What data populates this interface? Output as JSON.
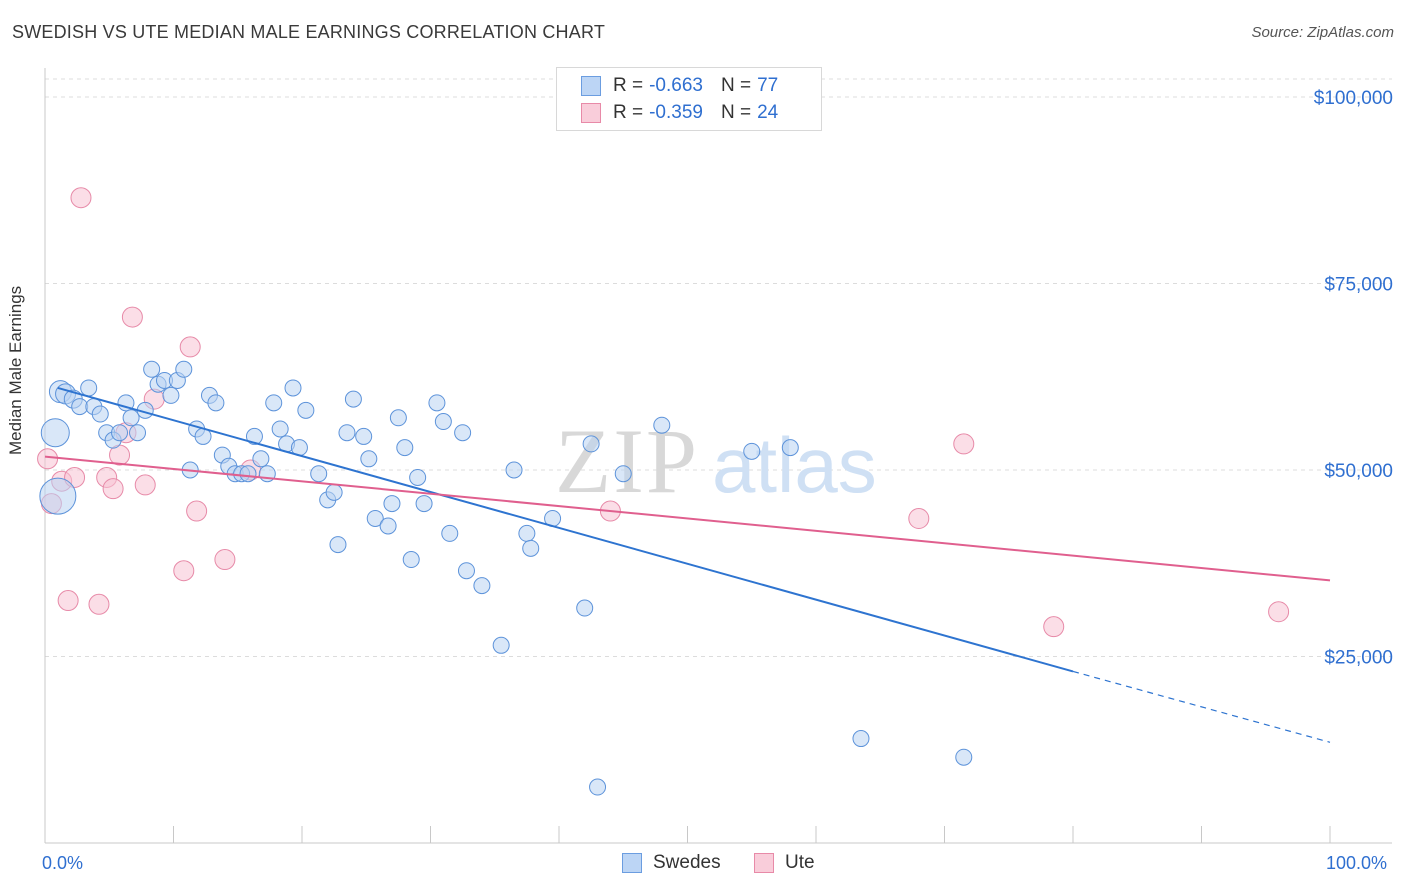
{
  "title": "SWEDISH VS UTE MEDIAN MALE EARNINGS CORRELATION CHART",
  "source": "Source: ZipAtlas.com",
  "watermark": {
    "zip": "ZIP",
    "atlas": "atlas"
  },
  "legend": {
    "r_label": "R =",
    "n_label": "N =",
    "rows": [
      {
        "r": "-0.663",
        "n": "77",
        "color": "#a9c8f2",
        "border": "#6b9de0"
      },
      {
        "r": "-0.359",
        "n": "24",
        "color": "#f7bfd0",
        "border": "#e88aa8"
      }
    ]
  },
  "bottom_legend": {
    "series1": "Swedes",
    "series2": "Ute"
  },
  "x_axis": {
    "min_label": "0.0%",
    "max_label": "100.0%"
  },
  "y_axis": {
    "title": "Median Male Earnings"
  },
  "colors": {
    "blue": "#4a86d8",
    "blue_line": "#2e74d0",
    "pink": "#e67fa0",
    "pink_line": "#e05f8e",
    "axis_text": "#2f6fd0"
  },
  "chart_data": {
    "type": "scatter",
    "xlim": [
      0,
      100
    ],
    "ylim": [
      0,
      105000
    ],
    "y_ticks": [
      {
        "value": 100000,
        "label": "$100,000"
      },
      {
        "value": 75000,
        "label": "$75,000"
      },
      {
        "value": 50000,
        "label": "$50,000"
      },
      {
        "value": 25000,
        "label": "$25,000"
      }
    ],
    "grid": true,
    "series": [
      {
        "name": "Swedes",
        "points": [
          [
            0.8,
            55000,
            14
          ],
          [
            1.0,
            46500,
            18
          ],
          [
            1.2,
            60500,
            11
          ],
          [
            1.6,
            60200,
            10
          ],
          [
            2.2,
            59500,
            9
          ],
          [
            2.7,
            58500,
            8
          ],
          [
            3.4,
            61000,
            8
          ],
          [
            3.8,
            58500,
            8
          ],
          [
            4.3,
            57500,
            8
          ],
          [
            4.8,
            55000,
            8
          ],
          [
            5.3,
            54000,
            8
          ],
          [
            5.8,
            55000,
            8
          ],
          [
            6.3,
            59000,
            8
          ],
          [
            6.7,
            57000,
            8
          ],
          [
            7.2,
            55000,
            8
          ],
          [
            7.8,
            58000,
            8
          ],
          [
            8.3,
            63500,
            8
          ],
          [
            8.8,
            61500,
            8
          ],
          [
            9.3,
            62000,
            8
          ],
          [
            9.8,
            60000,
            8
          ],
          [
            10.3,
            62000,
            8
          ],
          [
            10.8,
            63500,
            8
          ],
          [
            11.3,
            50000,
            8
          ],
          [
            11.8,
            55500,
            8
          ],
          [
            12.3,
            54500,
            8
          ],
          [
            12.8,
            60000,
            8
          ],
          [
            13.3,
            59000,
            8
          ],
          [
            13.8,
            52000,
            8
          ],
          [
            14.3,
            50500,
            8
          ],
          [
            14.8,
            49500,
            8
          ],
          [
            15.3,
            49500,
            8
          ],
          [
            15.8,
            49500,
            8
          ],
          [
            16.3,
            54500,
            8
          ],
          [
            16.8,
            51500,
            8
          ],
          [
            17.3,
            49500,
            8
          ],
          [
            17.8,
            59000,
            8
          ],
          [
            18.3,
            55500,
            8
          ],
          [
            18.8,
            53500,
            8
          ],
          [
            19.3,
            61000,
            8
          ],
          [
            19.8,
            53000,
            8
          ],
          [
            20.3,
            58000,
            8
          ],
          [
            21.3,
            49500,
            8
          ],
          [
            22.0,
            46000,
            8
          ],
          [
            22.5,
            47000,
            8
          ],
          [
            22.8,
            40000,
            8
          ],
          [
            23.5,
            55000,
            8
          ],
          [
            24.0,
            59500,
            8
          ],
          [
            24.8,
            54500,
            8
          ],
          [
            25.2,
            51500,
            8
          ],
          [
            25.7,
            43500,
            8
          ],
          [
            26.7,
            42500,
            8
          ],
          [
            27.0,
            45500,
            8
          ],
          [
            27.5,
            57000,
            8
          ],
          [
            28.0,
            53000,
            8
          ],
          [
            28.5,
            38000,
            8
          ],
          [
            29.0,
            49000,
            8
          ],
          [
            29.5,
            45500,
            8
          ],
          [
            30.5,
            59000,
            8
          ],
          [
            31.0,
            56500,
            8
          ],
          [
            31.5,
            41500,
            8
          ],
          [
            32.5,
            55000,
            8
          ],
          [
            32.8,
            36500,
            8
          ],
          [
            34.0,
            34500,
            8
          ],
          [
            35.5,
            26500,
            8
          ],
          [
            36.5,
            50000,
            8
          ],
          [
            37.5,
            41500,
            8
          ],
          [
            37.8,
            39500,
            8
          ],
          [
            39.5,
            43500,
            8
          ],
          [
            42.0,
            31500,
            8
          ],
          [
            42.5,
            53500,
            8
          ],
          [
            43.0,
            7500,
            8
          ],
          [
            45.0,
            49500,
            8
          ],
          [
            48.0,
            56000,
            8
          ],
          [
            55.0,
            52500,
            8
          ],
          [
            58.0,
            53000,
            8
          ],
          [
            63.5,
            14000,
            8
          ],
          [
            71.5,
            11500,
            8
          ]
        ],
        "trend": {
          "x0": 1.0,
          "y0": 61000,
          "x1": 80,
          "y1": 23000,
          "dash_x1": 100,
          "dash_y1": 13500
        }
      },
      {
        "name": "Ute",
        "points": [
          [
            0.2,
            51500,
            10
          ],
          [
            0.5,
            45500,
            10
          ],
          [
            1.3,
            48500,
            10
          ],
          [
            1.8,
            32500,
            10
          ],
          [
            2.3,
            49000,
            10
          ],
          [
            2.8,
            86500,
            10
          ],
          [
            4.2,
            32000,
            10
          ],
          [
            4.8,
            49000,
            10
          ],
          [
            5.3,
            47500,
            10
          ],
          [
            5.8,
            52000,
            10
          ],
          [
            6.3,
            55000,
            10
          ],
          [
            6.8,
            70500,
            10
          ],
          [
            7.8,
            48000,
            10
          ],
          [
            8.5,
            59500,
            10
          ],
          [
            10.8,
            36500,
            10
          ],
          [
            11.3,
            66500,
            10
          ],
          [
            11.8,
            44500,
            10
          ],
          [
            14.0,
            38000,
            10
          ],
          [
            16.0,
            50000,
            10
          ],
          [
            44.0,
            44500,
            10
          ],
          [
            68.0,
            43500,
            10
          ],
          [
            71.5,
            53500,
            10
          ],
          [
            78.5,
            29000,
            10
          ],
          [
            96.0,
            31000,
            10
          ]
        ],
        "trend": {
          "x0": 0,
          "y0": 51800,
          "x1": 100,
          "y1": 35200
        }
      }
    ]
  }
}
